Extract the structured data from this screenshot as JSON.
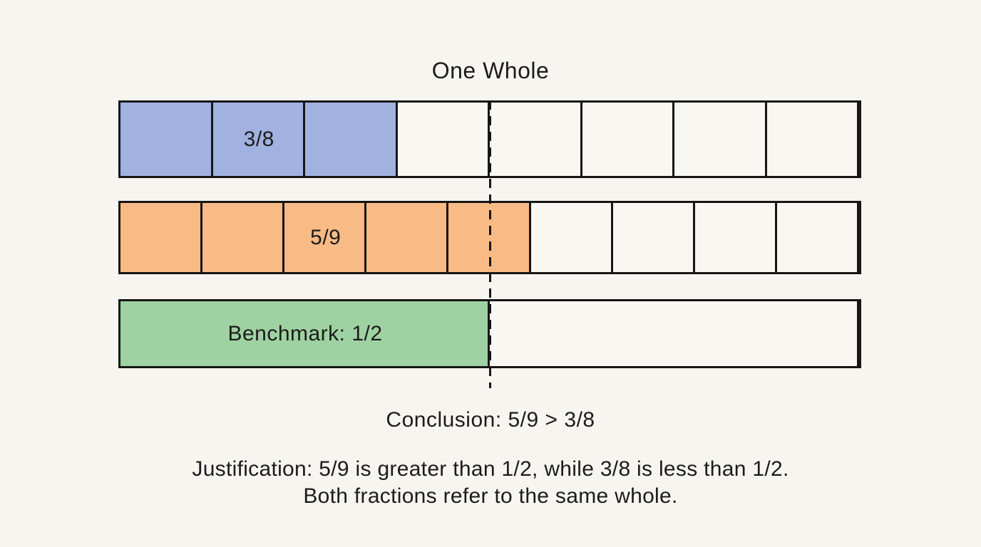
{
  "title": "One Whole",
  "diagram": {
    "bars": [
      {
        "id": "fraction-bar-3-8",
        "label": "3/8",
        "segments": 8,
        "filled": 3,
        "label_segment": 2,
        "fill_color": "#a1b2e1"
      },
      {
        "id": "fraction-bar-5-9",
        "label": "5/9",
        "segments": 9,
        "filled": 5,
        "label_segment": 3,
        "fill_color": "#f9bb85"
      },
      {
        "id": "benchmark-bar",
        "label": "Benchmark: 1/2",
        "segments": 2,
        "filled": 1,
        "label_segment": 1,
        "fill_color": "#9fd2a2"
      }
    ],
    "benchmark_line": {
      "fraction": "1/2",
      "position": 0.5
    }
  },
  "conclusion": "Conclusion: 5/9 > 3/8",
  "justification": {
    "line1": "Justification: 5/9 is greater than 1/2, while 3/8 is less than 1/2.",
    "line2": "Both fractions refer to the same whole."
  },
  "colors": {
    "background": "#f7f5f0",
    "segment_empty": "#f8f7f2",
    "border": "#161616",
    "text": "#1c1c1c",
    "blue_fill": "#a1b2e1",
    "orange_fill": "#f9bb85",
    "green_fill": "#9fd2a2"
  }
}
